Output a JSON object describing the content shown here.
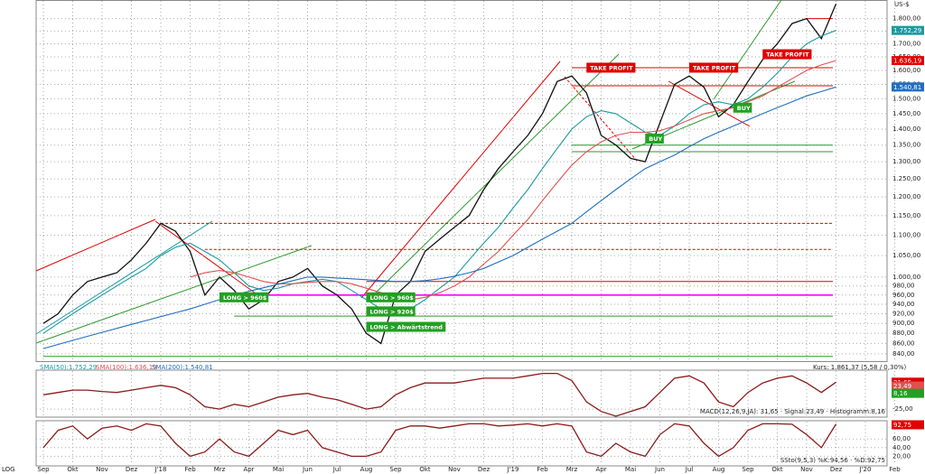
{
  "chart_data": [
    {
      "type": "line",
      "unit": "US-$",
      "scale_label": "LOG",
      "log": true,
      "grid": true,
      "categories": [
        "Sep",
        null,
        "Okt",
        null,
        "Nov",
        null,
        "Dez",
        null,
        "J'18",
        null,
        "Feb",
        null,
        "Mrz",
        null,
        "Apr",
        null,
        "Mai",
        null,
        "Jun",
        null,
        "Jul",
        null,
        "Aug",
        null,
        "Sep",
        null,
        "Okt",
        null,
        "Nov",
        null,
        "Dez",
        null,
        "J'19",
        null,
        "Feb",
        null,
        "Mrz",
        null,
        "Apr",
        null,
        "Mai",
        null,
        "Jun",
        null,
        "Jul",
        null,
        "Aug",
        null,
        "Sep",
        null,
        "Okt",
        null,
        "Nov",
        null,
        "Dez",
        null,
        "J'20",
        null,
        "Feb",
        null
      ],
      "series": [
        {
          "name": "Kurs: 1.861,37 (5,58 / 0,30%)",
          "color": "#111111",
          "values": [
            900,
            920,
            960,
            990,
            1000,
            1010,
            1040,
            1080,
            1130,
            1110,
            1060,
            960,
            1000,
            970,
            930,
            950,
            990,
            1000,
            1020,
            980,
            960,
            930,
            880,
            860,
            960,
            990,
            1060,
            1090,
            1120,
            1150,
            1220,
            1280,
            1330,
            1380,
            1450,
            1560,
            1580,
            1520,
            1380,
            1350,
            1310,
            1300,
            1420,
            1550,
            1580,
            1540,
            1440,
            1480,
            1560,
            1640,
            1700,
            1780,
            1800,
            1720,
            1861.37,
            null,
            null,
            null,
            null,
            null
          ]
        },
        {
          "name": "SMA(50):1.752,29",
          "color": "#1a9aa0",
          "values": [
            880,
            900,
            920,
            940,
            960,
            980,
            1000,
            1020,
            1050,
            1070,
            1080,
            1060,
            1040,
            1010,
            980,
            970,
            975,
            985,
            990,
            995,
            990,
            970,
            950,
            930,
            920,
            930,
            950,
            975,
            1000,
            1040,
            1080,
            1120,
            1170,
            1220,
            1280,
            1340,
            1400,
            1440,
            1460,
            1450,
            1420,
            1390,
            1380,
            1410,
            1450,
            1480,
            1490,
            1480,
            1500,
            1540,
            1590,
            1650,
            1700,
            1730,
            1752.29,
            null,
            null,
            null,
            null,
            null
          ]
        },
        {
          "name": "SMA(100):1.636,19",
          "color": "#e05050",
          "values": [
            null,
            null,
            null,
            null,
            null,
            null,
            null,
            null,
            null,
            null,
            1000,
            1010,
            1015,
            1010,
            1000,
            990,
            985,
            985,
            988,
            990,
            990,
            985,
            975,
            965,
            955,
            950,
            955,
            965,
            980,
            1000,
            1030,
            1060,
            1100,
            1140,
            1190,
            1240,
            1290,
            1330,
            1360,
            1380,
            1390,
            1390,
            1395,
            1410,
            1430,
            1450,
            1460,
            1470,
            1490,
            1510,
            1540,
            1570,
            1600,
            1620,
            1636.19,
            null,
            null,
            null,
            null,
            null
          ]
        },
        {
          "name": "SMA(200):1.540,81",
          "color": "#1f6fc0",
          "values": [
            850,
            858,
            866,
            874,
            882,
            890,
            898,
            906,
            914,
            922,
            930,
            940,
            950,
            960,
            968,
            976,
            984,
            992,
            1000,
            1000,
            998,
            996,
            994,
            992,
            990,
            990,
            992,
            996,
            1002,
            1010,
            1020,
            1035,
            1050,
            1070,
            1090,
            1110,
            1130,
            1160,
            1190,
            1220,
            1250,
            1280,
            1300,
            1320,
            1345,
            1370,
            1390,
            1410,
            1430,
            1450,
            1470,
            1490,
            1510,
            1525,
            1540.81,
            null,
            null,
            null,
            null,
            null
          ]
        }
      ],
      "ylim": [
        826,
        1874
      ],
      "yticks": [
        {
          "value": 840,
          "label": "840,00"
        },
        {
          "value": 860,
          "label": "860,00"
        },
        {
          "value": 880,
          "label": "880,00"
        },
        {
          "value": 900,
          "label": "900,00"
        },
        {
          "value": 920,
          "label": "920,00"
        },
        {
          "value": 940,
          "label": "940,00"
        },
        {
          "value": 960,
          "label": "960,00"
        },
        {
          "value": 980,
          "label": "980,00"
        },
        {
          "value": 1000,
          "label": "1.000,00"
        },
        {
          "value": 1050,
          "label": "1.050,00"
        },
        {
          "value": 1100,
          "label": "1.100,00"
        },
        {
          "value": 1150,
          "label": "1.150,00"
        },
        {
          "value": 1200,
          "label": "1.200,00"
        },
        {
          "value": 1250,
          "label": "1.250,00"
        },
        {
          "value": 1300,
          "label": "1.300,00"
        },
        {
          "value": 1350,
          "label": "1.350,00"
        },
        {
          "value": 1400,
          "label": "1.400,00"
        },
        {
          "value": 1450,
          "label": "1.450,00"
        },
        {
          "value": 1500,
          "label": "1.500,00"
        },
        {
          "value": 1550,
          "label": "1.550,00"
        },
        {
          "value": 1600,
          "label": "1.600,00"
        },
        {
          "value": 1650,
          "label": "1.650,00"
        },
        {
          "value": 1700,
          "label": "1.700,00"
        },
        {
          "value": 1750,
          "label": "1.750,00"
        },
        {
          "value": 1800,
          "label": "1.800,00"
        }
      ],
      "value_labels": [
        {
          "value": 1752.29,
          "label": "1.752,29",
          "color": "#1a9aa0"
        },
        {
          "value": 1636.19,
          "label": "1.636,19",
          "color": "#e00000"
        },
        {
          "value": 1540.81,
          "label": "1.540,81",
          "color": "#1f6fc0"
        }
      ],
      "hlines": [
        {
          "value": 1130,
          "color": "#e00000",
          "dashed": true,
          "from": 8
        },
        {
          "value": 1065,
          "color": "#e00000",
          "dashed": true,
          "from": 11
        },
        {
          "value": 990,
          "color": "#e00000",
          "dashed": false,
          "from": 22
        },
        {
          "value": 960,
          "color": "#ff00ff",
          "dashed": false,
          "from": 13
        },
        {
          "value": 915,
          "color": "#2a9a2a",
          "dashed": false,
          "from": 13
        },
        {
          "value": 835,
          "color": "#2a9a2a",
          "dashed": false,
          "from": 0
        },
        {
          "value": 1350,
          "color": "#2a9a2a",
          "dashed": false,
          "from": 36
        },
        {
          "value": 1330,
          "color": "#2a9a2a",
          "dashed": false,
          "from": 36
        },
        {
          "value": 1545,
          "color": "#e00000",
          "dashed": false,
          "from": 36
        },
        {
          "value": 1610,
          "color": "#e00000",
          "dashed": false,
          "from": 36
        },
        {
          "value": 1800,
          "color": "#e00000",
          "dashed": false,
          "from": 52
        }
      ],
      "annotations": [
        {
          "text": "TAKE PROFIT",
          "x": 37,
          "y": 1610,
          "color": "#e00000"
        },
        {
          "text": "TAKE PROFIT",
          "x": 44,
          "y": 1610,
          "color": "#e00000"
        },
        {
          "text": "TAKE PROFIT",
          "x": 49,
          "y": 1660,
          "color": "#e00000"
        },
        {
          "text": "BUY",
          "x": 41,
          "y": 1370,
          "color": "#22a022"
        },
        {
          "text": "BUY",
          "x": 47,
          "y": 1470,
          "color": "#22a022"
        },
        {
          "text": "LONG > 960$",
          "x": 12,
          "y": 955,
          "color": "#22a022"
        },
        {
          "text": "LONG > 960$",
          "x": 22,
          "y": 955,
          "color": "#22a022"
        },
        {
          "text": "LONG > 920$",
          "x": 22,
          "y": 925,
          "color": "#22a022"
        },
        {
          "text": "LONG > Abwärtstrend",
          "x": 22,
          "y": 893,
          "color": "#22a022"
        }
      ]
    },
    {
      "type": "line",
      "title": "MACD(12,26,9,JA): 31,65 · Signal:23,49 · Histogramm:8,16",
      "series": [
        {
          "color": "#8b1a1a",
          "values": [
            5,
            10,
            15,
            15,
            12,
            10,
            15,
            20,
            25,
            20,
            5,
            -20,
            -25,
            -15,
            -20,
            -10,
            0,
            5,
            8,
            0,
            -5,
            -15,
            -25,
            -20,
            5,
            20,
            30,
            30,
            30,
            35,
            40,
            40,
            40,
            45,
            50,
            50,
            35,
            -10,
            -30,
            -40,
            -30,
            -20,
            10,
            40,
            45,
            30,
            -10,
            -20,
            10,
            30,
            40,
            45,
            30,
            10,
            31.65,
            null,
            null,
            null,
            null,
            null
          ]
        }
      ],
      "ylim": [
        -40,
        55
      ],
      "yticks": [
        {
          "value": -25,
          "label": "-25,00"
        }
      ],
      "value_labels": [
        {
          "value": 31.65,
          "label": "31,65",
          "color": "#e00000"
        },
        {
          "value": 23.49,
          "label": "23,49",
          "color": "#e05050"
        },
        {
          "value": 8.16,
          "label": "8,16",
          "color": "#22a022"
        }
      ]
    },
    {
      "type": "line",
      "title": "SSto(9,5,3) %K:94,56 · %D:92,75",
      "series": [
        {
          "color": "#8b1a1a",
          "values": [
            40,
            80,
            90,
            60,
            85,
            90,
            80,
            95,
            90,
            50,
            20,
            30,
            60,
            30,
            20,
            50,
            80,
            70,
            80,
            40,
            30,
            20,
            20,
            30,
            80,
            90,
            90,
            85,
            90,
            95,
            95,
            90,
            92,
            95,
            90,
            95,
            90,
            30,
            20,
            50,
            30,
            20,
            70,
            95,
            90,
            50,
            20,
            40,
            80,
            95,
            95,
            94,
            70,
            40,
            94.56,
            null,
            null,
            null,
            null,
            null
          ]
        }
      ],
      "ylim": [
        0,
        100
      ],
      "yticks": [
        {
          "value": 20,
          "label": "20,00"
        },
        {
          "value": 40,
          "label": "40,00"
        },
        {
          "value": 60,
          "label": "60,00"
        }
      ],
      "value_labels": [
        {
          "value": 92.75,
          "label": "92,75",
          "color": "#e00000"
        }
      ]
    }
  ]
}
